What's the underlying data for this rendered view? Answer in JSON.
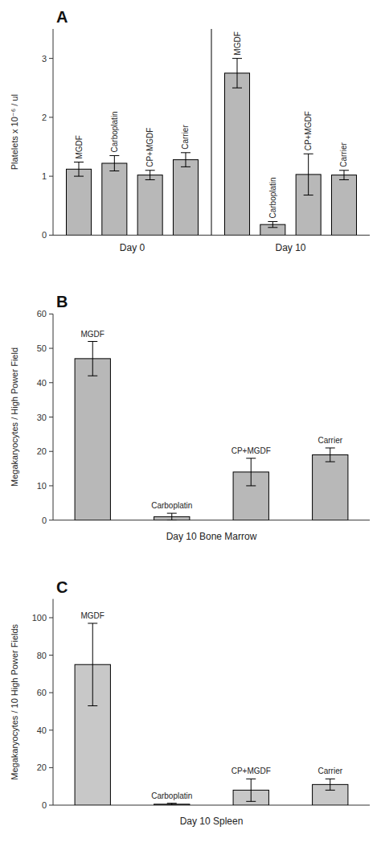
{
  "chart_data": [
    {
      "type": "bar",
      "title": "A",
      "ylabel": "Platelets x 10⁻⁶ / ul",
      "categories": [
        "Day 0",
        "Day 10"
      ],
      "series": [
        {
          "name": "MGDF",
          "values": [
            1.12,
            2.75
          ],
          "errors": [
            0.12,
            0.25
          ]
        },
        {
          "name": "Carboplatin",
          "values": [
            1.22,
            0.18
          ],
          "errors": [
            0.13,
            0.05
          ]
        },
        {
          "name": "CP+MGDF",
          "values": [
            1.02,
            1.03
          ],
          "errors": [
            0.08,
            0.35
          ]
        },
        {
          "name": "Carrier",
          "values": [
            1.28,
            1.02
          ],
          "errors": [
            0.12,
            0.08
          ]
        }
      ],
      "color": "#b8b8b8",
      "ylim": [
        0,
        3.5
      ],
      "yticks": [
        0,
        1,
        2,
        3
      ],
      "grid": false
    },
    {
      "type": "bar",
      "title": "B",
      "ylabel": "Megakaryocytes / High Power Field",
      "xlabel": "Day 10 Bone Marrow",
      "categories": [
        "MGDF",
        "Carboplatin",
        "CP+MGDF",
        "Carrier"
      ],
      "values": [
        47,
        1,
        14,
        19
      ],
      "errors": [
        5,
        1,
        4,
        2
      ],
      "color": "#b8b8b8",
      "ylim": [
        0,
        60
      ],
      "yticks": [
        0,
        10,
        20,
        30,
        40,
        50,
        60
      ],
      "grid": false,
      "tick_labels": "y"
    },
    {
      "type": "bar",
      "title": "C",
      "ylabel": "Megakaryocytes / 10 High Power Fields",
      "xlabel": "Day 10 Spleen",
      "categories": [
        "MGDF",
        "Carboplatin",
        "CP+MGDF",
        "Carrier"
      ],
      "values": [
        75,
        0.5,
        8,
        11
      ],
      "errors": [
        22,
        0.5,
        6,
        3
      ],
      "color": "#c8c8c8",
      "ylim": [
        0,
        110
      ],
      "yticks": [
        0,
        20,
        40,
        60,
        80,
        100
      ],
      "grid": false,
      "tick_labels": "y"
    }
  ]
}
